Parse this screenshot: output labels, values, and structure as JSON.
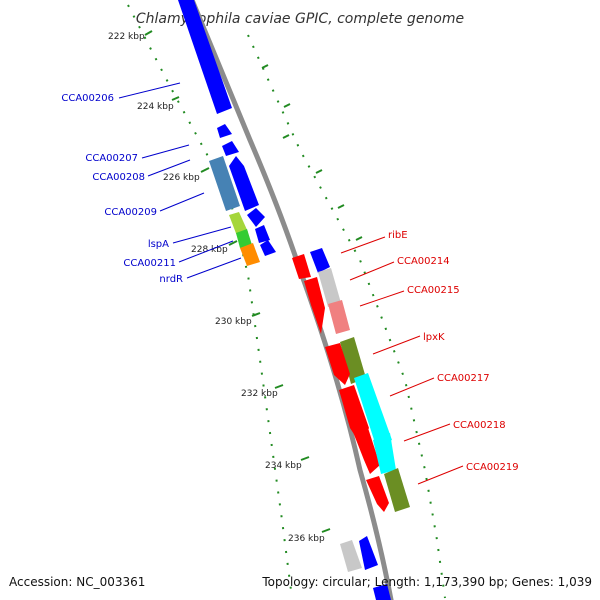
{
  "title": "Chlamydophila caviae GPIC, complete genome",
  "footer": {
    "accession": "Accession: NC_003361",
    "summary": "Topology: circular; Length: 1,173,390 bp; Genes: 1,039"
  },
  "colors": {
    "backbone": "#8c8c8c",
    "tick": "#228b22",
    "left_label": "#0000cc",
    "right_label": "#dd0000",
    "blue": "#0000ff",
    "steelblue": "#4682b4",
    "yellowgreen": "#a5d63a",
    "green": "#33cc33",
    "orange": "#ff8c00",
    "red": "#ff0000",
    "lightgray": "#c8c8c8",
    "salmon": "#f08080",
    "olive": "#6b8e23",
    "cyan": "#00ffff"
  },
  "ticks": [
    "222 kbp",
    "224 kbp",
    "226 kbp",
    "228 kbp",
    "230 kbp",
    "232 kbp",
    "234 kbp",
    "236 kbp"
  ],
  "left_labels": [
    "CCA00206",
    "CCA00207",
    "CCA00208",
    "CCA00209",
    "lspA",
    "CCA00211",
    "nrdR"
  ],
  "right_labels": [
    "ribE",
    "CCA00214",
    "CCA00215",
    "lpxK",
    "CCA00217",
    "CCA00218",
    "CCA00219"
  ]
}
